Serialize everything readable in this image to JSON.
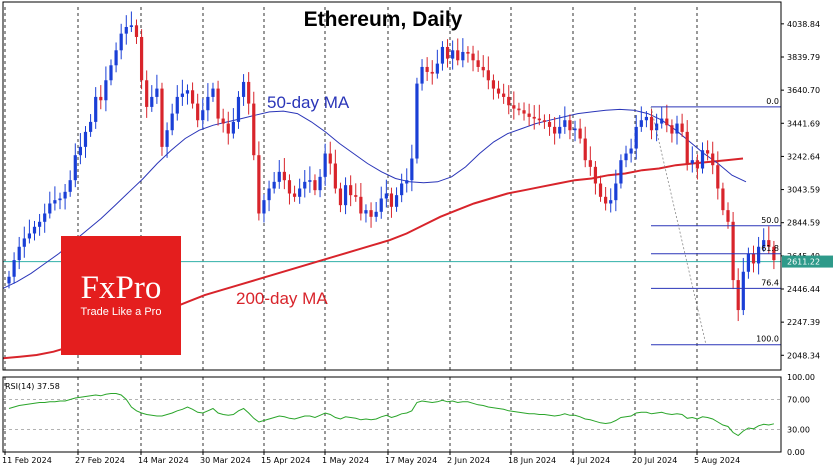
{
  "chart_data": {
    "type": "candlestick",
    "title": "Ethereum, Daily",
    "price_ticks": [
      "4038.84",
      "3839.79",
      "3640.70",
      "3441.69",
      "3242.64",
      "3043.59",
      "2844.59",
      "2645.49",
      "2446.44",
      "2247.39",
      "2048.34"
    ],
    "current_price": "2611.22",
    "date_labels": [
      "11 Feb 2024",
      "27 Feb 2024",
      "14 Mar 2024",
      "30 Mar 2024",
      "15 Apr 2024",
      "1 May 2024",
      "17 May 2024",
      "2 Jun 2024",
      "18 Jun 2024",
      "4 Jul 2024",
      "20 Jul 2024",
      "5 Aug 2024"
    ],
    "price_range": [
      1960,
      4140
    ],
    "closes": [
      2520,
      2620,
      2700,
      2750,
      2780,
      2820,
      2850,
      2900,
      2960,
      2980,
      2990,
      3030,
      3100,
      3250,
      3300,
      3390,
      3450,
      3600,
      3580,
      3700,
      3790,
      3880,
      3980,
      4020,
      4030,
      3960,
      3700,
      3540,
      3600,
      3650,
      3300,
      3400,
      3500,
      3600,
      3620,
      3640,
      3560,
      3460,
      3520,
      3600,
      3650,
      3470,
      3440,
      3380,
      3450,
      3600,
      3690,
      3560,
      3250,
      2900,
      2980,
      3050,
      3090,
      3150,
      3100,
      3020,
      3000,
      3050,
      3090,
      3100,
      3040,
      3120,
      3260,
      3200,
      3050,
      2950,
      3070,
      3010,
      3000,
      2900,
      2920,
      2880,
      2910,
      2990,
      3020,
      2940,
      3010,
      3080,
      3100,
      3230,
      3680,
      3780,
      3750,
      3740,
      3800,
      3900,
      3830,
      3880,
      3820,
      3870,
      3860,
      3820,
      3780,
      3760,
      3700,
      3650,
      3620,
      3600,
      3550,
      3530,
      3520,
      3500,
      3480,
      3470,
      3460,
      3450,
      3420,
      3380,
      3420,
      3460,
      3400,
      3410,
      3350,
      3220,
      3180,
      3080,
      3000,
      2960,
      2980,
      3080,
      3220,
      3260,
      3290,
      3420,
      3460,
      3480,
      3400,
      3440,
      3470,
      3430,
      3380,
      3440,
      3390,
      3200,
      3220,
      3170,
      3280,
      3260,
      3190,
      3050,
      2920,
      2850,
      2500,
      2320,
      2550,
      2660,
      2600,
      2700,
      2740,
      2700,
      2620
    ],
    "ma50": [
      2450,
      2490,
      2540,
      2600,
      2660,
      2730,
      2800,
      2870,
      2950,
      3030,
      3110,
      3200,
      3280,
      3350,
      3400,
      3430,
      3450,
      3470,
      3490,
      3510,
      3515,
      3500,
      3450,
      3390,
      3320,
      3260,
      3200,
      3150,
      3110,
      3090,
      3085,
      3090,
      3120,
      3180,
      3260,
      3330,
      3380,
      3410,
      3440,
      3460,
      3480,
      3500,
      3510,
      3520,
      3525,
      3520,
      3500,
      3460,
      3400,
      3330,
      3260,
      3200,
      3130,
      3090
    ],
    "ma200": [
      2030,
      2040,
      2050,
      2070,
      2100,
      2130,
      2170,
      2210,
      2250,
      2290,
      2330,
      2370,
      2410,
      2440,
      2470,
      2500,
      2530,
      2560,
      2590,
      2620,
      2650,
      2680,
      2710,
      2740,
      2780,
      2830,
      2880,
      2920,
      2960,
      2990,
      3020,
      3040,
      3060,
      3080,
      3100,
      3110,
      3130,
      3140,
      3160,
      3170,
      3190,
      3200,
      3210,
      3220,
      3230
    ],
    "rsi_label": "RSI(14) 37.58",
    "rsi_ticks": [
      "100.00",
      "70.00",
      "30.00",
      "0.00"
    ],
    "rsi": [
      58,
      60,
      62,
      63,
      64,
      65,
      66,
      66,
      67,
      67,
      68,
      68,
      70,
      72,
      73,
      74,
      75,
      76,
      75,
      77,
      78,
      78,
      76,
      70,
      60,
      55,
      52,
      50,
      49,
      48,
      48,
      50,
      52,
      55,
      57,
      60,
      57,
      53,
      52,
      55,
      58,
      52,
      50,
      49,
      50,
      55,
      58,
      52,
      45,
      40,
      42,
      44,
      46,
      48,
      47,
      45,
      44,
      46,
      48,
      48,
      46,
      49,
      52,
      50,
      46,
      44,
      47,
      46,
      45,
      43,
      44,
      43,
      44,
      47,
      49,
      46,
      48,
      51,
      52,
      55,
      66,
      68,
      67,
      66,
      67,
      69,
      67,
      68,
      66,
      67,
      67,
      65,
      63,
      62,
      60,
      59,
      58,
      57,
      55,
      54,
      53,
      52,
      51,
      51,
      50,
      50,
      49,
      48,
      49,
      51,
      49,
      49,
      47,
      44,
      43,
      41,
      39,
      38,
      39,
      42,
      46,
      47,
      48,
      52,
      53,
      53,
      51,
      52,
      53,
      51,
      50,
      51,
      50,
      45,
      46,
      44,
      47,
      46,
      44,
      40,
      36,
      34,
      26,
      22,
      28,
      32,
      31,
      35,
      37,
      36,
      37.58
    ],
    "ma_labels": {
      "ma50": "50-day MA",
      "ma200": "200-day MA"
    },
    "fib_levels": [
      {
        "label": "0.0",
        "price": 3540
      },
      {
        "label": "50.0",
        "price": 2826
      },
      {
        "label": "61.8",
        "price": 2658
      },
      {
        "label": "76.4",
        "price": 2450
      },
      {
        "label": "100.0",
        "price": 2112
      }
    ],
    "horizontal_line_price": 2611.22,
    "colors": {
      "up": "#1a3fd6",
      "down": "#d8242b",
      "ma50": "#2a35b8",
      "ma200": "#d8242b",
      "rsi": "#2aa52a",
      "hline": "#30b0a8",
      "price_marker": "#2e9a8a"
    }
  },
  "logo": {
    "name": "FxPro",
    "tagline": "Trade Like a Pro"
  }
}
